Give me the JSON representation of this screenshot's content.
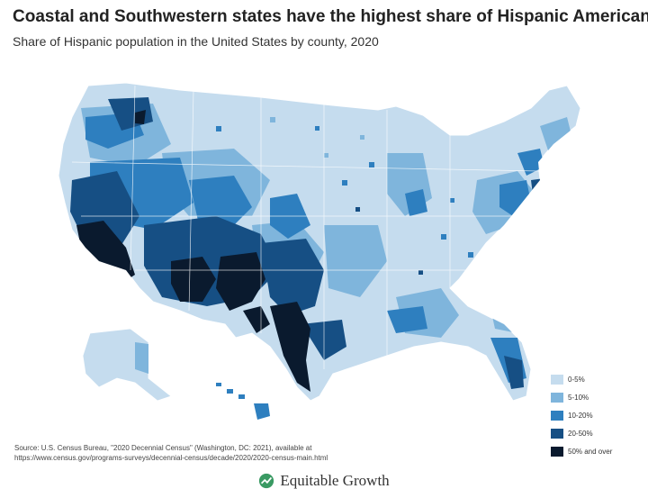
{
  "title": "Coastal and Southwestern states have the highest share of Hispanic Americans",
  "subtitle": "Share of Hispanic population in the United States by county, 2020",
  "legend": {
    "items": [
      {
        "label": "0-5%",
        "color": "#c5dcee"
      },
      {
        "label": "5-10%",
        "color": "#7fb5dc"
      },
      {
        "label": "10-20%",
        "color": "#2e7fbf"
      },
      {
        "label": "20-50%",
        "color": "#164f84"
      },
      {
        "label": "50% and over",
        "color": "#0a1a2e"
      }
    ]
  },
  "source": {
    "line1": "Source: U.S. Census Bureau, \"2020 Decennial Census\" (Washington, DC: 2021), available at",
    "line2": "https://www.census.gov/programs-surveys/decennial-census/decade/2020/2020-census-main.html"
  },
  "brand": {
    "name": "Equitable Growth"
  }
}
